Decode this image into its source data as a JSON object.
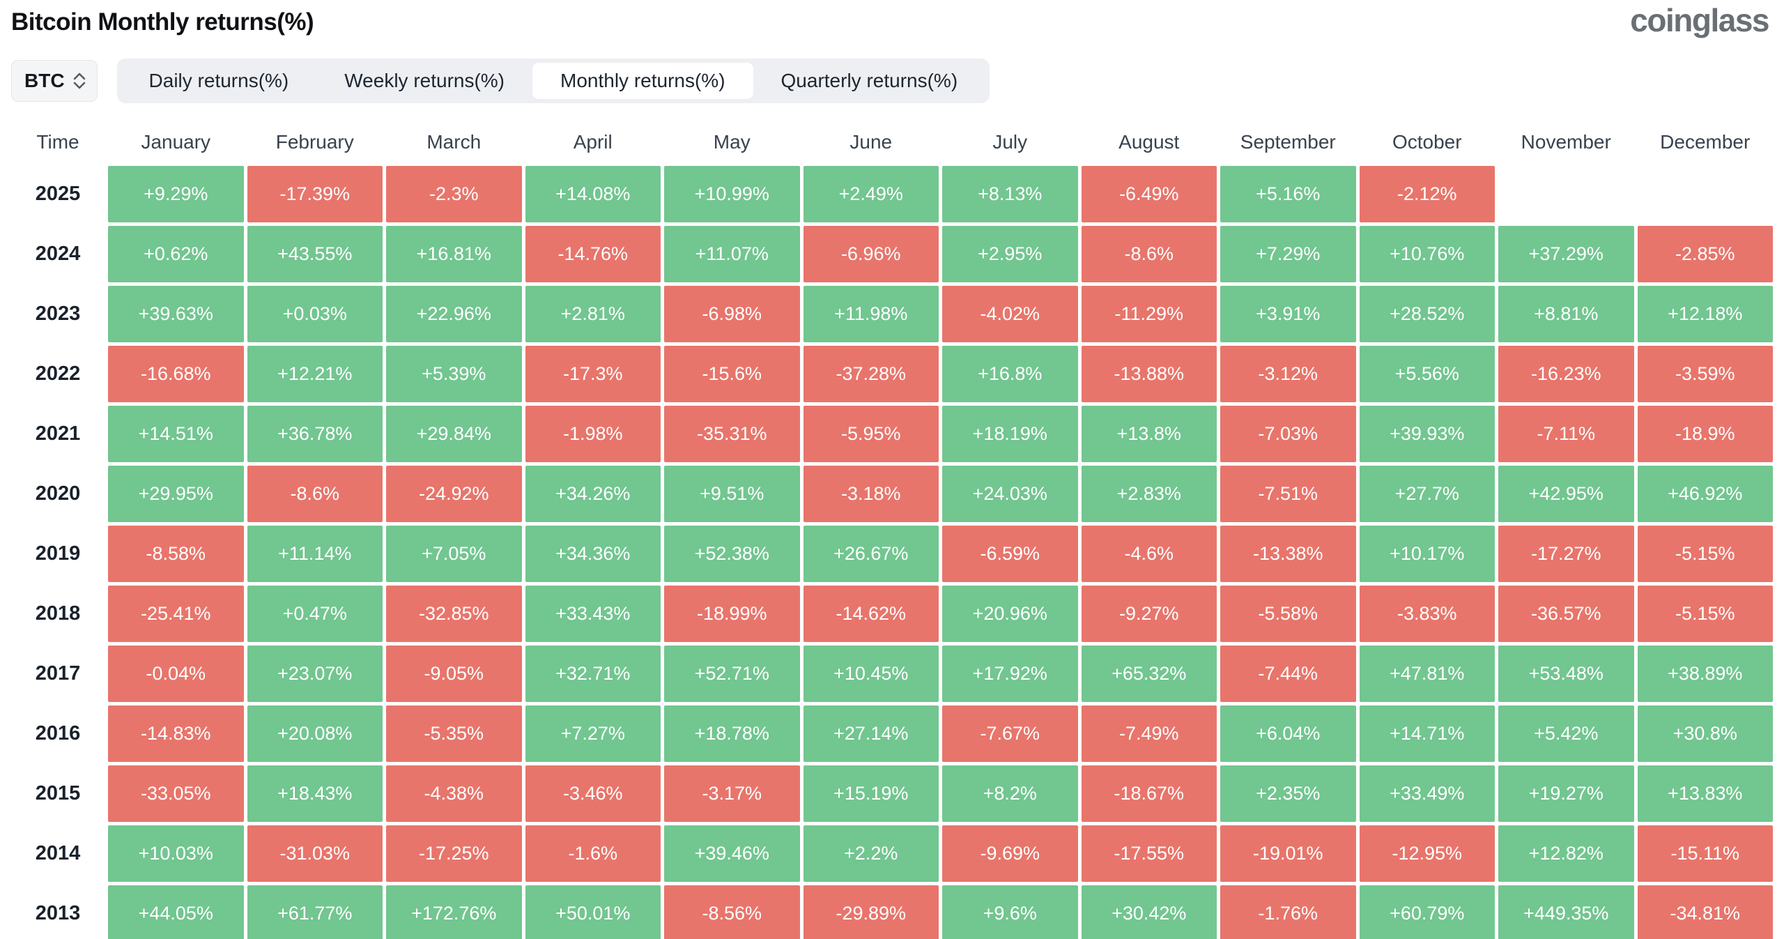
{
  "page": {
    "title": "Bitcoin Monthly returns(%)",
    "logo_text": "coinglass"
  },
  "controls": {
    "symbol_select": {
      "value": "BTC",
      "icon": "updown-chevron-icon"
    },
    "tabs": [
      {
        "label": "Daily returns(%)",
        "active": false
      },
      {
        "label": "Weekly returns(%)",
        "active": false
      },
      {
        "label": "Monthly returns(%)",
        "active": true
      },
      {
        "label": "Quarterly returns(%)",
        "active": false
      }
    ]
  },
  "colors": {
    "positive": "#72c690",
    "negative": "#e8756b",
    "tabbar_bg": "#edeff2",
    "active_tab_bg": "#ffffff",
    "header_text": "#39424e",
    "title_text": "#0f1115",
    "logo_text": "#6a6f75"
  },
  "chart_data": {
    "type": "heatmap",
    "title": "Bitcoin Monthly returns(%)",
    "unit": "percent",
    "legend": {
      "positive_color": "#72c690",
      "negative_color": "#e8756b"
    },
    "columns": [
      "Time",
      "January",
      "February",
      "March",
      "April",
      "May",
      "June",
      "July",
      "August",
      "September",
      "October",
      "November",
      "December"
    ],
    "rows": [
      {
        "year": "2025",
        "values": [
          "+9.29%",
          "-17.39%",
          "-2.3%",
          "+14.08%",
          "+10.99%",
          "+2.49%",
          "+8.13%",
          "-6.49%",
          "+5.16%",
          "-2.12%",
          "",
          ""
        ]
      },
      {
        "year": "2024",
        "values": [
          "+0.62%",
          "+43.55%",
          "+16.81%",
          "-14.76%",
          "+11.07%",
          "-6.96%",
          "+2.95%",
          "-8.6%",
          "+7.29%",
          "+10.76%",
          "+37.29%",
          "-2.85%"
        ]
      },
      {
        "year": "2023",
        "values": [
          "+39.63%",
          "+0.03%",
          "+22.96%",
          "+2.81%",
          "-6.98%",
          "+11.98%",
          "-4.02%",
          "-11.29%",
          "+3.91%",
          "+28.52%",
          "+8.81%",
          "+12.18%"
        ]
      },
      {
        "year": "2022",
        "values": [
          "-16.68%",
          "+12.21%",
          "+5.39%",
          "-17.3%",
          "-15.6%",
          "-37.28%",
          "+16.8%",
          "-13.88%",
          "-3.12%",
          "+5.56%",
          "-16.23%",
          "-3.59%"
        ]
      },
      {
        "year": "2021",
        "values": [
          "+14.51%",
          "+36.78%",
          "+29.84%",
          "-1.98%",
          "-35.31%",
          "-5.95%",
          "+18.19%",
          "+13.8%",
          "-7.03%",
          "+39.93%",
          "-7.11%",
          "-18.9%"
        ]
      },
      {
        "year": "2020",
        "values": [
          "+29.95%",
          "-8.6%",
          "-24.92%",
          "+34.26%",
          "+9.51%",
          "-3.18%",
          "+24.03%",
          "+2.83%",
          "-7.51%",
          "+27.7%",
          "+42.95%",
          "+46.92%"
        ]
      },
      {
        "year": "2019",
        "values": [
          "-8.58%",
          "+11.14%",
          "+7.05%",
          "+34.36%",
          "+52.38%",
          "+26.67%",
          "-6.59%",
          "-4.6%",
          "-13.38%",
          "+10.17%",
          "-17.27%",
          "-5.15%"
        ]
      },
      {
        "year": "2018",
        "values": [
          "-25.41%",
          "+0.47%",
          "-32.85%",
          "+33.43%",
          "-18.99%",
          "-14.62%",
          "+20.96%",
          "-9.27%",
          "-5.58%",
          "-3.83%",
          "-36.57%",
          "-5.15%"
        ]
      },
      {
        "year": "2017",
        "values": [
          "-0.04%",
          "+23.07%",
          "-9.05%",
          "+32.71%",
          "+52.71%",
          "+10.45%",
          "+17.92%",
          "+65.32%",
          "-7.44%",
          "+47.81%",
          "+53.48%",
          "+38.89%"
        ]
      },
      {
        "year": "2016",
        "values": [
          "-14.83%",
          "+20.08%",
          "-5.35%",
          "+7.27%",
          "+18.78%",
          "+27.14%",
          "-7.67%",
          "-7.49%",
          "+6.04%",
          "+14.71%",
          "+5.42%",
          "+30.8%"
        ]
      },
      {
        "year": "2015",
        "values": [
          "-33.05%",
          "+18.43%",
          "-4.38%",
          "-3.46%",
          "-3.17%",
          "+15.19%",
          "+8.2%",
          "-18.67%",
          "+2.35%",
          "+33.49%",
          "+19.27%",
          "+13.83%"
        ]
      },
      {
        "year": "2014",
        "values": [
          "+10.03%",
          "-31.03%",
          "-17.25%",
          "-1.6%",
          "+39.46%",
          "+2.2%",
          "-9.69%",
          "-17.55%",
          "-19.01%",
          "-12.95%",
          "+12.82%",
          "-15.11%"
        ]
      },
      {
        "year": "2013",
        "values": [
          "+44.05%",
          "+61.77%",
          "+172.76%",
          "+50.01%",
          "-8.56%",
          "-29.89%",
          "+9.6%",
          "+30.42%",
          "-1.76%",
          "+60.79%",
          "+449.35%",
          "-34.81%"
        ]
      }
    ]
  }
}
